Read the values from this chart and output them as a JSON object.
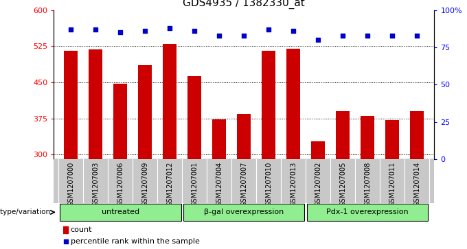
{
  "title": "GDS4935 / 1382330_at",
  "samples": [
    "GSM1207000",
    "GSM1207003",
    "GSM1207006",
    "GSM1207009",
    "GSM1207012",
    "GSM1207001",
    "GSM1207004",
    "GSM1207007",
    "GSM1207010",
    "GSM1207013",
    "GSM1207002",
    "GSM1207005",
    "GSM1207008",
    "GSM1207011",
    "GSM1207014"
  ],
  "counts": [
    515,
    518,
    447,
    485,
    530,
    462,
    373,
    385,
    515,
    520,
    328,
    390,
    380,
    372,
    390
  ],
  "percentile_ranks": [
    87,
    87,
    85,
    86,
    88,
    86,
    83,
    83,
    87,
    86,
    80,
    83,
    83,
    83,
    83
  ],
  "groups": [
    {
      "label": "untreated",
      "start": 0,
      "end": 4,
      "color": "#90EE90"
    },
    {
      "label": "β-gal overexpression",
      "start": 5,
      "end": 9,
      "color": "#90EE90"
    },
    {
      "label": "Pdx-1 overexpression",
      "start": 10,
      "end": 14,
      "color": "#90EE90"
    }
  ],
  "ylim_left": [
    290,
    600
  ],
  "ylim_right": [
    0,
    100
  ],
  "yticks_left": [
    300,
    375,
    450,
    525,
    600
  ],
  "yticks_right": [
    0,
    25,
    50,
    75,
    100
  ],
  "bar_color": "#CC0000",
  "dot_color": "#0000CC",
  "bar_width": 0.55,
  "grid_color": "#000000",
  "bg_color": "#C8C8C8",
  "plot_bg": "#FFFFFF",
  "genotype_label": "genotype/variation",
  "legend_count": "count",
  "legend_percentile": "percentile rank within the sample",
  "title_fontsize": 11,
  "tick_fontsize": 8,
  "label_fontsize": 7,
  "group_fontsize": 8
}
